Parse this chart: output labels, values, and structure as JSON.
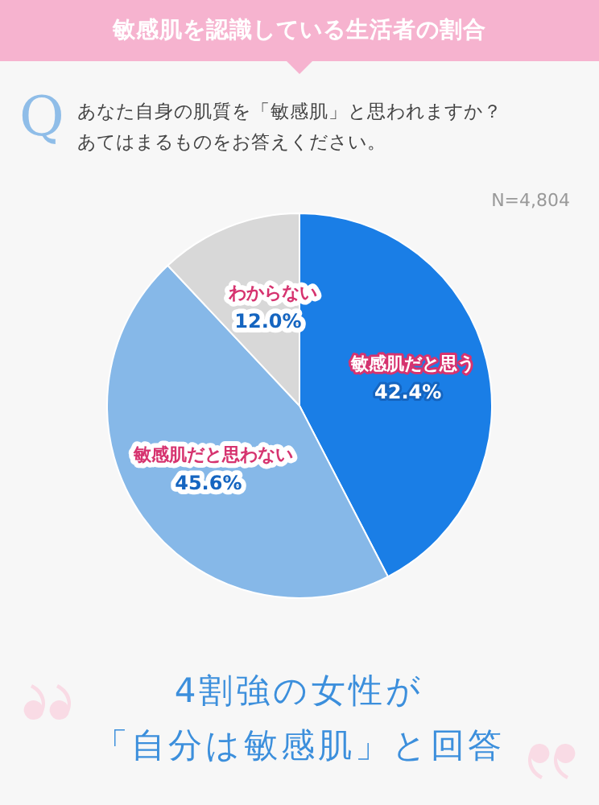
{
  "chart_data": {
    "type": "pie",
    "title": "敏感肌を認識している生活者の割合",
    "subtitle": "あなた自身の肌質を「敏感肌」と思われますか？あてはまるものをお答えください。",
    "categories": [
      "敏感肌だと思う",
      "敏感肌だと思わない",
      "わからない"
    ],
    "values": [
      42.4,
      45.6,
      12.0
    ],
    "value_labels": [
      "42.4%",
      "45.6%",
      "12.0%"
    ],
    "colors": [
      "#1a7ee6",
      "#86b8e8",
      "#d8d8d8"
    ],
    "annotations": [
      "Q",
      "N=4,804",
      "4割強の女性が",
      "「自分は敏感肌」と回答"
    ],
    "legend": false
  }
}
